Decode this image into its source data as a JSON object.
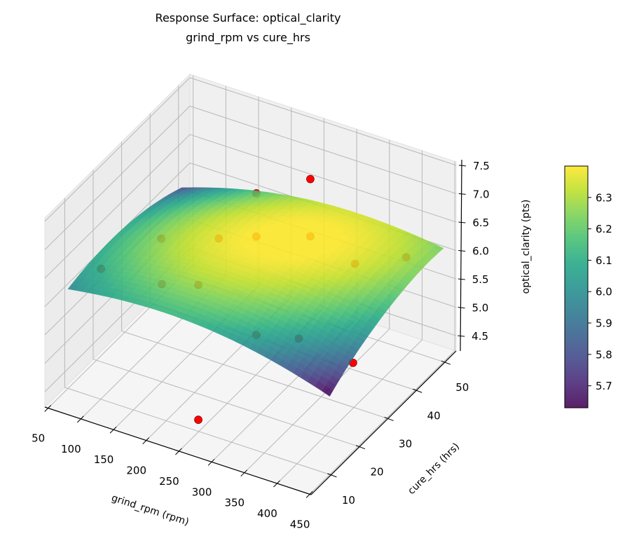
{
  "chart_data": {
    "type": "surface3d",
    "title": [
      "Response Surface: optical_clarity",
      "grind_rpm vs cure_hrs"
    ],
    "xlabel": "grind_rpm (rpm)",
    "ylabel": "cure_hrs (hrs)",
    "zlabel": "optical_clarity (pts)",
    "xlim": [
      45,
      452
    ],
    "ylim": [
      3,
      54
    ],
    "zlim": [
      4.23,
      7.56
    ],
    "xticks": [
      "50",
      "100",
      "150",
      "200",
      "250",
      "300",
      "350",
      "400",
      "450"
    ],
    "yticks": [
      "10",
      "20",
      "30",
      "40",
      "50"
    ],
    "zticks": [
      "4.5",
      "5.0",
      "5.5",
      "6.0",
      "6.5",
      "7.0",
      "7.5"
    ],
    "grid": true,
    "surface": {
      "colormap": "viridis",
      "x": [
        50,
        150,
        250,
        350,
        450
      ],
      "y": [
        10,
        20,
        30,
        40,
        50
      ],
      "z": [
        [
          5.98,
          6.11,
          6.1,
          5.93,
          5.61
        ],
        [
          6.08,
          6.26,
          6.3,
          6.18,
          5.92
        ],
        [
          6.08,
          6.32,
          6.4,
          6.34,
          6.12
        ],
        [
          5.98,
          6.27,
          6.4,
          6.39,
          6.23
        ],
        [
          5.78,
          6.12,
          6.31,
          6.34,
          6.23
        ]
      ]
    },
    "points": {
      "color": "#ff0000",
      "values": [
        {
          "x": 50,
          "y": 21.6,
          "z": 5.76
        },
        {
          "x": 150,
          "y": 19.8,
          "z": 6.76
        },
        {
          "x": 200,
          "y": 41.7,
          "z": 6.66
        },
        {
          "x": 250,
          "y": 49.2,
          "z": 6.73
        },
        {
          "x": 270,
          "y": 5.2,
          "z": 4.75
        },
        {
          "x": 450,
          "y": 18.2,
          "z": 5.79
        },
        {
          "x": 150,
          "y": 40.0,
          "z": 5.76
        },
        {
          "x": 200,
          "y": 41.7,
          "z": 5.9
        },
        {
          "x": 250,
          "y": 49.2,
          "z": 5.72
        },
        {
          "x": 100,
          "y": 31.5,
          "z": 5.19
        },
        {
          "x": 150,
          "y": 32.8,
          "z": 5.3
        },
        {
          "x": 350,
          "y": 41.9,
          "z": 5.98
        },
        {
          "x": 450,
          "y": 36.9,
          "z": 6.72
        },
        {
          "x": 250,
          "y": 30.2,
          "z": 4.93
        },
        {
          "x": 350,
          "y": 22.2,
          "z": 5.64
        }
      ]
    },
    "colorbar": {
      "label": "optical_clarity (pts)",
      "range": [
        5.63,
        6.4
      ],
      "ticks": [
        "5.7",
        "5.8",
        "5.9",
        "6.0",
        "6.1",
        "6.2",
        "6.3"
      ]
    }
  }
}
